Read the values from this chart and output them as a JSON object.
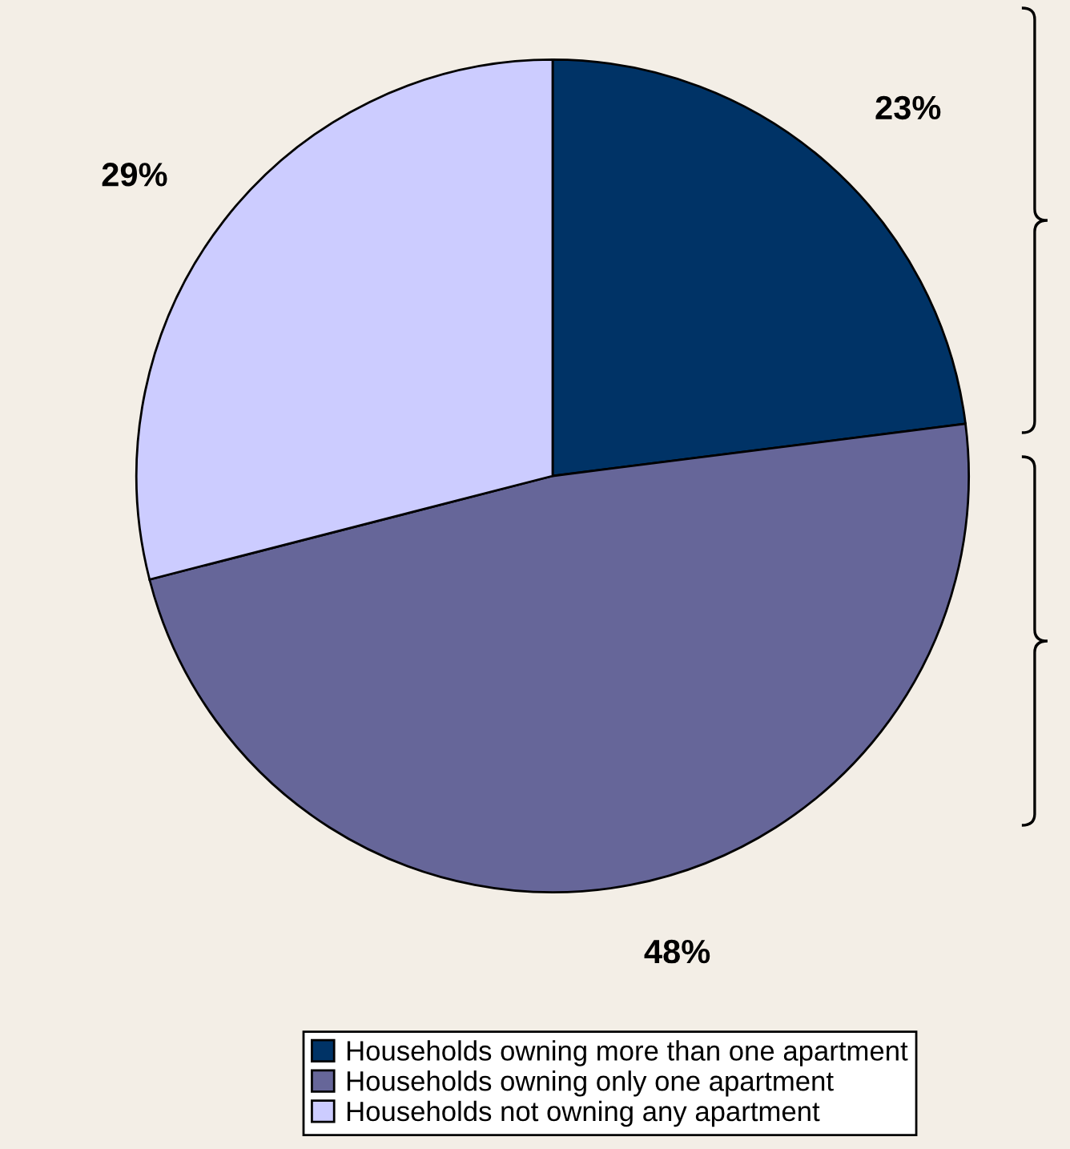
{
  "chart_data": {
    "type": "pie",
    "categories": [
      "Households owning more than one apartment",
      "Households owning only one apartment",
      "Households not owning any apartment"
    ],
    "values": [
      23,
      48,
      29
    ],
    "colors": [
      "#003366",
      "#666699",
      "#ccccff"
    ],
    "value_labels": [
      "23%",
      "48%",
      "29%"
    ],
    "legend": "bottom"
  }
}
